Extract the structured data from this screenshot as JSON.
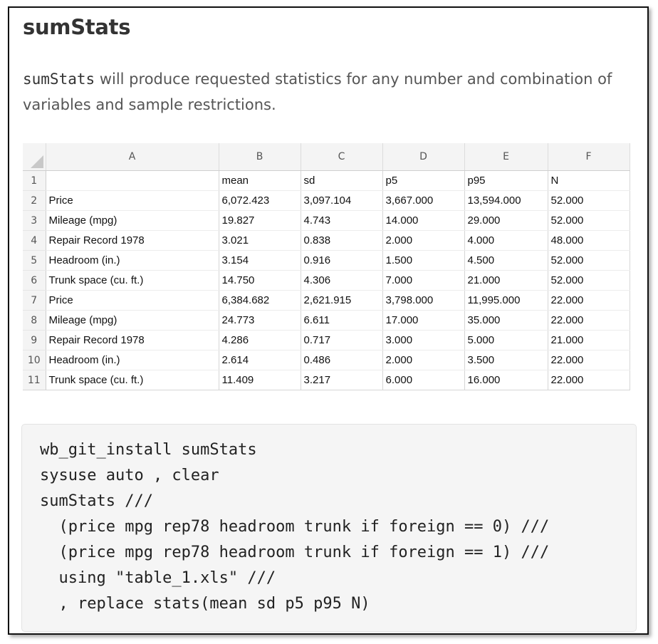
{
  "title": "sumStats",
  "description": {
    "code_word": "sumStats",
    "text": " will produce requested statistics for any number and combination of variables and sample restrictions."
  },
  "sheet": {
    "columns": [
      "A",
      "B",
      "C",
      "D",
      "E",
      "F"
    ],
    "rows": [
      {
        "num": "1",
        "cells": [
          "",
          "mean",
          "sd",
          "p5",
          "p95",
          "N"
        ]
      },
      {
        "num": "2",
        "cells": [
          "Price",
          "6,072.423",
          "3,097.104",
          "3,667.000",
          "13,594.000",
          "52.000"
        ]
      },
      {
        "num": "3",
        "cells": [
          "Mileage (mpg)",
          "19.827",
          "4.743",
          "14.000",
          "29.000",
          "52.000"
        ]
      },
      {
        "num": "4",
        "cells": [
          "Repair Record 1978",
          "3.021",
          "0.838",
          "2.000",
          "4.000",
          "48.000"
        ]
      },
      {
        "num": "5",
        "cells": [
          "Headroom (in.)",
          "3.154",
          "0.916",
          "1.500",
          "4.500",
          "52.000"
        ]
      },
      {
        "num": "6",
        "cells": [
          "Trunk space (cu. ft.)",
          "14.750",
          "4.306",
          "7.000",
          "21.000",
          "52.000"
        ]
      },
      {
        "num": "7",
        "cells": [
          "Price",
          "6,384.682",
          "2,621.915",
          "3,798.000",
          "11,995.000",
          "22.000"
        ]
      },
      {
        "num": "8",
        "cells": [
          "Mileage (mpg)",
          "24.773",
          "6.611",
          "17.000",
          "35.000",
          "22.000"
        ]
      },
      {
        "num": "9",
        "cells": [
          "Repair Record 1978",
          "4.286",
          "0.717",
          "3.000",
          "5.000",
          "21.000"
        ]
      },
      {
        "num": "10",
        "cells": [
          "Headroom (in.)",
          "2.614",
          "0.486",
          "2.000",
          "3.500",
          "22.000"
        ]
      },
      {
        "num": "11",
        "cells": [
          "Trunk space (cu. ft.)",
          "11.409",
          "3.217",
          "6.000",
          "16.000",
          "22.000"
        ]
      }
    ]
  },
  "code_lines": [
    "wb_git_install sumStats",
    "sysuse auto , clear",
    "sumStats ///",
    "  (price mpg rep78 headroom trunk if foreign == 0) ///",
    "  (price mpg rep78 headroom trunk if foreign == 1) ///",
    "  using \"table_1.xls\" ///",
    "  , replace stats(mean sd p5 p95 N)"
  ]
}
